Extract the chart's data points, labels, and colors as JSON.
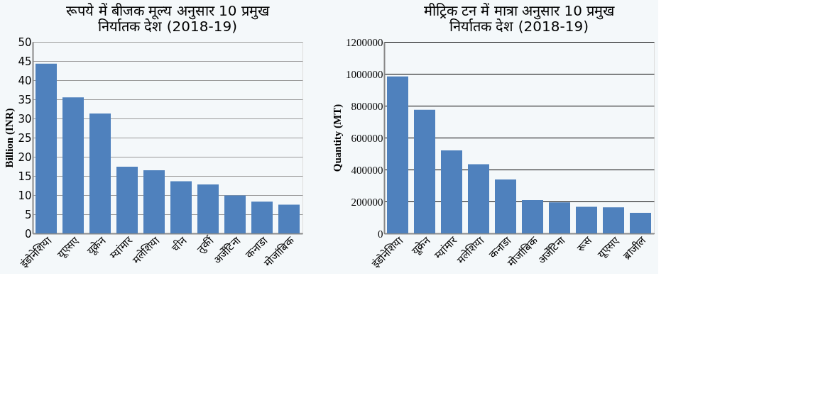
{
  "chart_data": [
    {
      "type": "bar",
      "title": "रूपये में बीजक मूल्य अनुसार 10 प्रमुख\nनिर्यातक देश (2018-19)",
      "ylabel": "Billion (INR)",
      "categories": [
        "इंडोनेशिया",
        "यूएसए",
        "यूक्रेन",
        "म्यांमार",
        "मलेशिया",
        "चीन",
        "तुर्की",
        "अर्जेंटिना",
        "कनाडा",
        "मोजांबिक"
      ],
      "values": [
        44.3,
        35.5,
        31.3,
        17.4,
        16.5,
        13.6,
        12.8,
        9.9,
        8.3,
        7.5
      ],
      "color": "#4f81bd",
      "ylim": [
        0,
        50
      ],
      "yticks": [
        0,
        5,
        10,
        15,
        20,
        25,
        30,
        35,
        40,
        45,
        50
      ],
      "grid": "y"
    },
    {
      "type": "bar",
      "title": "मीट्रिक टन में मात्रा अनुसार 10 प्रमुख\nनिर्यातक देश (2018-19)",
      "ylabel": "Quantity (MT)",
      "categories": [
        "इंडोनेशिया",
        "यूक्रेन",
        "म्यांमार",
        "मलेशिया",
        "कनाडा",
        "मोजांबिक",
        "अर्जेंटिना",
        "रूस",
        "यूएसए",
        "ब्राजील"
      ],
      "values": [
        983000,
        774000,
        520000,
        433000,
        338000,
        209000,
        194000,
        167000,
        163000,
        129000
      ],
      "color": "#4f81bd",
      "ylim": [
        0,
        1200000
      ],
      "yticks": [
        0,
        200000,
        400000,
        600000,
        800000,
        1000000,
        1200000
      ],
      "grid": "y"
    }
  ]
}
